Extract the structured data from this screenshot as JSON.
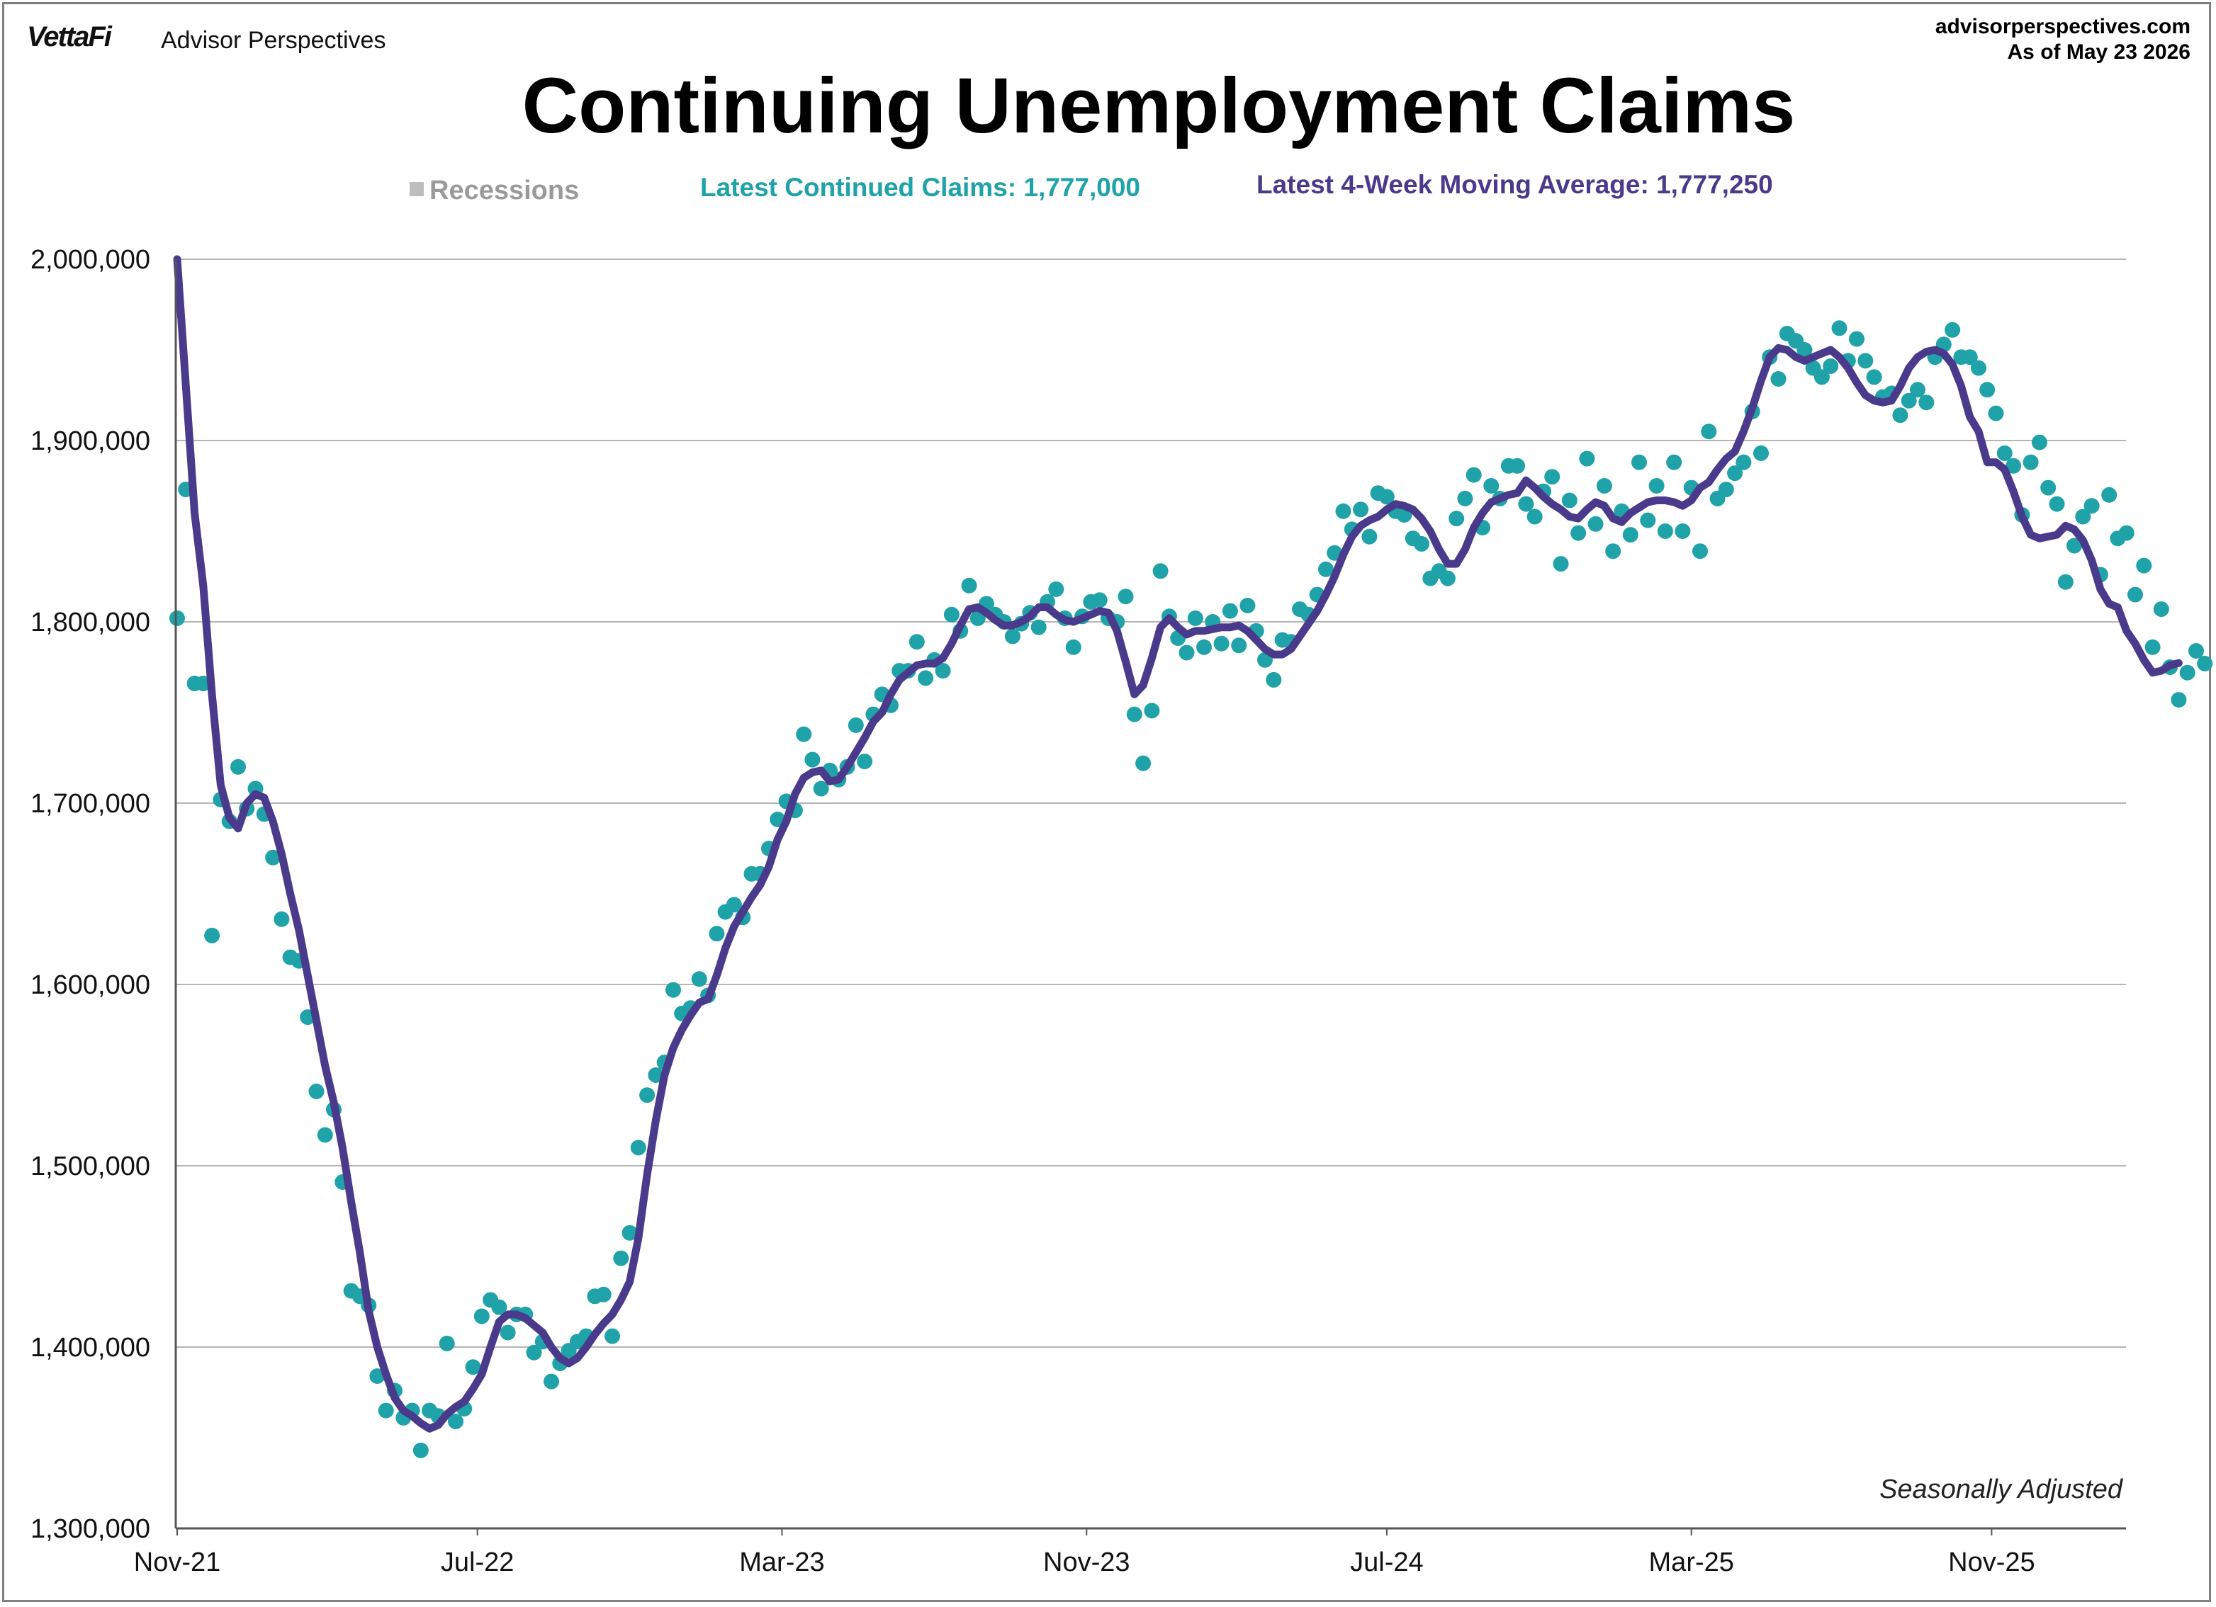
{
  "header": {
    "brand": "VettaFi",
    "brand_sub": "Advisor Perspectives",
    "source_url": "advisorperspectives.com",
    "as_of": "As of May 23 2026"
  },
  "legend": {
    "recessions": "Recessions",
    "latest_claims": "Latest Continued Claims: 1,777,000",
    "latest_ma": "Latest 4-Week Moving Average: 1,777,250"
  },
  "note": "Seasonally Adjusted",
  "colors": {
    "claims": "#1fa2a8",
    "moving_average": "#4a3a8c",
    "recession": "#bdbdbd",
    "grid": "#b5b5b5"
  },
  "chart_data": {
    "type": "scatter",
    "title": "Continuing Unemployment Claims",
    "xlabel": "",
    "ylabel": "",
    "ylim": [
      1300000,
      2000000
    ],
    "yticks": [
      "2,000,000",
      "1,900,000",
      "1,800,000",
      "1,700,000",
      "1,600,000",
      "1,500,000",
      "1,400,000",
      "1,300,000"
    ],
    "xticks": [
      "Nov-21",
      "Jul-22",
      "Mar-23",
      "Nov-23",
      "Jul-24",
      "Mar-25",
      "Nov-25"
    ],
    "x_start": "2021-11-06",
    "x_unit": "weeks",
    "grid": true,
    "series": [
      {
        "name": "Continued Claims",
        "style": "dots",
        "values": [
          1802000,
          1873000,
          1766000,
          1766000,
          1627000,
          1702000,
          1690000,
          1720000,
          1697000,
          1708000,
          1694000,
          1670000,
          1636000,
          1615000,
          1613000,
          1582000,
          1541000,
          1517000,
          1531000,
          1491000,
          1431000,
          1428000,
          1423000,
          1384000,
          1365000,
          1376000,
          1361000,
          1365000,
          1343000,
          1365000,
          1362000,
          1402000,
          1359000,
          1366000,
          1389000,
          1417000,
          1426000,
          1422000,
          1408000,
          1418000,
          1418000,
          1397000,
          1403000,
          1381000,
          1391000,
          1398000,
          1403000,
          1406000,
          1428000,
          1429000,
          1406000,
          1449000,
          1463000,
          1510000,
          1539000,
          1550000,
          1557000,
          1597000,
          1584000,
          1587000,
          1603000,
          1594000,
          1628000,
          1640000,
          1644000,
          1637000,
          1661000,
          1661000,
          1675000,
          1691000,
          1701000,
          1696000,
          1738000,
          1724000,
          1708000,
          1718000,
          1713000,
          1720000,
          1743000,
          1723000,
          1749000,
          1760000,
          1754000,
          1773000,
          1773000,
          1789000,
          1769000,
          1779000,
          1773000,
          1804000,
          1795000,
          1820000,
          1802000,
          1810000,
          1804000,
          1800000,
          1792000,
          1799000,
          1805000,
          1797000,
          1811000,
          1818000,
          1802000,
          1786000,
          1803000,
          1811000,
          1812000,
          1802000,
          1800000,
          1814000,
          1749000,
          1722000,
          1751000,
          1828000,
          1803000,
          1791000,
          1783000,
          1802000,
          1786000,
          1800000,
          1788000,
          1806000,
          1787000,
          1809000,
          1795000,
          1779000,
          1768000,
          1790000,
          1789000,
          1807000,
          1804000,
          1815000,
          1829000,
          1838000,
          1861000,
          1851000,
          1862000,
          1847000,
          1871000,
          1869000,
          1861000,
          1859000,
          1846000,
          1843000,
          1824000,
          1828000,
          1824000,
          1857000,
          1868000,
          1881000,
          1852000,
          1875000,
          1868000,
          1886000,
          1886000,
          1865000,
          1858000,
          1872000,
          1880000,
          1832000,
          1867000,
          1849000,
          1890000,
          1854000,
          1875000,
          1839000,
          1861000,
          1848000,
          1888000,
          1856000,
          1875000,
          1850000,
          1888000,
          1850000,
          1874000,
          1839000,
          1905000,
          1868000,
          1873000,
          1882000,
          1888000,
          1916000,
          1893000,
          1946000,
          1934000,
          1959000,
          1955000,
          1950000,
          1940000,
          1935000,
          1941000,
          1962000,
          1944000,
          1956000,
          1944000,
          1935000,
          1924000,
          1926000,
          1914000,
          1922000,
          1928000,
          1921000,
          1946000,
          1953000,
          1961000,
          1946000,
          1946000,
          1940000,
          1928000,
          1915000,
          1893000,
          1886000,
          1859000,
          1888000,
          1899000,
          1874000,
          1865000,
          1822000,
          1842000,
          1858000,
          1864000,
          1826000,
          1870000,
          1846000,
          1849000,
          1815000,
          1831000,
          1786000,
          1807000,
          1775000,
          1757000,
          1772000,
          1784000,
          1777000
        ]
      },
      {
        "name": "4-Week Moving Average",
        "style": "line",
        "values": [
          2000000,
          1930000,
          1860000,
          1820000,
          1760000,
          1710000,
          1692000,
          1686000,
          1700000,
          1705000,
          1703000,
          1690000,
          1672000,
          1650000,
          1630000,
          1605000,
          1580000,
          1555000,
          1535000,
          1510000,
          1480000,
          1452000,
          1420000,
          1400000,
          1385000,
          1372000,
          1365000,
          1362000,
          1358000,
          1355000,
          1357000,
          1363000,
          1367000,
          1370000,
          1377000,
          1385000,
          1400000,
          1414000,
          1418000,
          1418000,
          1416000,
          1412000,
          1408000,
          1400000,
          1394000,
          1391000,
          1394000,
          1400000,
          1407000,
          1413000,
          1418000,
          1426000,
          1436000,
          1460000,
          1495000,
          1525000,
          1550000,
          1565000,
          1575000,
          1583000,
          1590000,
          1592000,
          1605000,
          1620000,
          1632000,
          1640000,
          1648000,
          1655000,
          1665000,
          1680000,
          1690000,
          1705000,
          1714000,
          1717000,
          1718000,
          1712000,
          1713000,
          1720000,
          1728000,
          1736000,
          1745000,
          1750000,
          1760000,
          1768000,
          1772000,
          1776000,
          1777000,
          1777000,
          1780000,
          1788000,
          1798000,
          1807000,
          1808000,
          1805000,
          1801000,
          1798000,
          1798000,
          1800000,
          1803000,
          1808000,
          1808000,
          1804000,
          1801000,
          1800000,
          1802000,
          1804000,
          1806000,
          1805000,
          1795000,
          1778000,
          1760000,
          1765000,
          1780000,
          1797000,
          1802000,
          1797000,
          1793000,
          1795000,
          1795000,
          1796000,
          1797000,
          1797000,
          1798000,
          1795000,
          1790000,
          1785000,
          1782000,
          1782000,
          1785000,
          1792000,
          1799000,
          1806000,
          1815000,
          1825000,
          1837000,
          1847000,
          1853000,
          1856000,
          1858000,
          1862000,
          1865000,
          1864000,
          1862000,
          1857000,
          1850000,
          1840000,
          1832000,
          1832000,
          1840000,
          1852000,
          1860000,
          1866000,
          1868000,
          1870000,
          1871000,
          1878000,
          1874000,
          1869000,
          1865000,
          1862000,
          1858000,
          1857000,
          1862000,
          1866000,
          1864000,
          1857000,
          1855000,
          1860000,
          1863000,
          1866000,
          1867000,
          1867000,
          1866000,
          1864000,
          1867000,
          1874000,
          1877000,
          1884000,
          1890000,
          1894000,
          1905000,
          1918000,
          1933000,
          1946000,
          1951000,
          1950000,
          1946000,
          1944000,
          1946000,
          1948000,
          1950000,
          1946000,
          1940000,
          1932000,
          1925000,
          1922000,
          1921000,
          1922000,
          1930000,
          1940000,
          1946000,
          1949000,
          1950000,
          1948000,
          1942000,
          1930000,
          1913000,
          1905000,
          1888000,
          1888000,
          1884000,
          1872000,
          1858000,
          1848000,
          1846000,
          1847000,
          1848000,
          1853000,
          1851000,
          1845000,
          1834000,
          1818000,
          1810000,
          1808000,
          1795000,
          1788000,
          1779000,
          1772000,
          1773000,
          1776000,
          1777250
        ]
      }
    ]
  }
}
